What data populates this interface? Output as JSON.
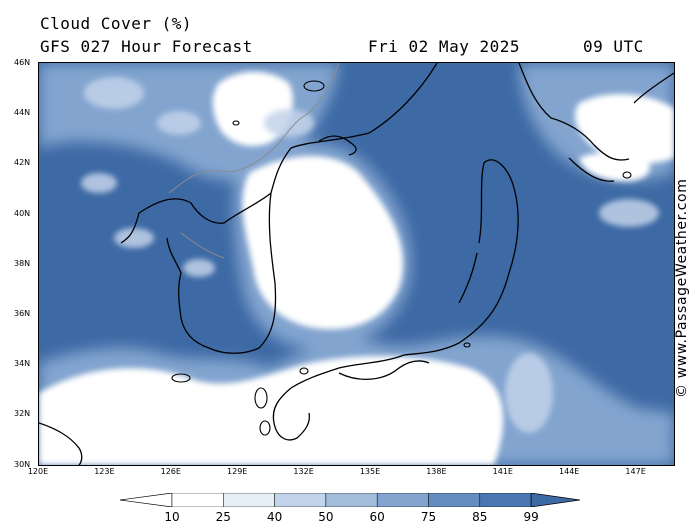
{
  "header": {
    "title": "Cloud Cover (%)",
    "subtitle": "GFS 027 Hour Forecast",
    "date": "Fri 02 May 2025",
    "time": "09 UTC"
  },
  "map": {
    "lat_labels": [
      "46N",
      "44N",
      "42N",
      "40N",
      "38N",
      "36N",
      "34N",
      "32N",
      "30N"
    ],
    "lon_labels": [
      "120E",
      "123E",
      "126E",
      "129E",
      "132E",
      "135E",
      "138E",
      "141E",
      "144E",
      "147E"
    ],
    "credit": "© www.PassageWeather.com"
  },
  "legend": {
    "labels": [
      "10",
      "25",
      "40",
      "50",
      "60",
      "75",
      "85",
      "99"
    ],
    "colors": [
      "#ffffff",
      "#e6eef8",
      "#c3d3ea",
      "#a3bddd",
      "#82a4cf",
      "#648dc0",
      "#4a76b0",
      "#3d69a4"
    ]
  },
  "colors": {
    "overcast": "#3d69a4",
    "heavy": "#4a76b0",
    "medium": "#82a4cf",
    "light": "#c3d3ea",
    "clear": "#ffffff",
    "coastline": "#000000",
    "border": "#8c8c8c"
  }
}
